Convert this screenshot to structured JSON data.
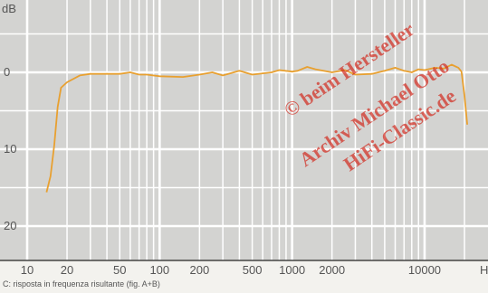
{
  "chart_data": {
    "type": "line",
    "x_scale": "log",
    "y_reversed": true,
    "yunit": "dB",
    "xunit": "Hz",
    "xlim": [
      8,
      28000
    ],
    "ylim": [
      -9,
      24
    ],
    "yticks": [
      {
        "value": 0,
        "label": "0"
      },
      {
        "value": 10,
        "label": "10"
      },
      {
        "value": 20,
        "label": "20"
      }
    ],
    "xticks": [
      {
        "value": 10,
        "label": "10"
      },
      {
        "value": 20,
        "label": "20"
      },
      {
        "value": 50,
        "label": "50"
      },
      {
        "value": 100,
        "label": "100"
      },
      {
        "value": 200,
        "label": "200"
      },
      {
        "value": 500,
        "label": "500"
      },
      {
        "value": 1000,
        "label": "1000"
      },
      {
        "value": 2000,
        "label": "2000"
      },
      {
        "value": 10000,
        "label": "10000"
      }
    ],
    "grid": true,
    "series": [
      {
        "color": "#e8a030",
        "x": [
          14,
          15,
          16,
          17,
          18,
          20,
          25,
          30,
          40,
          50,
          60,
          70,
          80,
          100,
          150,
          200,
          250,
          300,
          400,
          500,
          700,
          800,
          1000,
          1100,
          1300,
          1500,
          2000,
          2500,
          3000,
          4000,
          5000,
          6000,
          7000,
          8000,
          9000,
          10000,
          12000,
          14000,
          16000,
          18000,
          19000,
          20000,
          21000
        ],
        "y": [
          15.6,
          13.5,
          9.5,
          4.5,
          2.0,
          1.3,
          0.4,
          0.2,
          0.2,
          0.2,
          0.0,
          0.3,
          0.3,
          0.5,
          0.6,
          0.3,
          0.0,
          0.4,
          -0.2,
          0.3,
          0.0,
          -0.3,
          -0.1,
          -0.2,
          -0.7,
          -0.4,
          0.0,
          -0.3,
          0.3,
          0.2,
          -0.2,
          -0.6,
          -0.2,
          0.0,
          -0.4,
          -0.3,
          -0.6,
          -0.5,
          -1.0,
          -0.6,
          -0.1,
          3.0,
          6.8
        ]
      }
    ]
  },
  "watermark": [
    "© beim Hersteller",
    "Archiv Michael Otto",
    "HiFi-Classic.de"
  ],
  "caption": "C:  risposta in frequenza risultante (fig. A+B)",
  "colors": {
    "plot_bg": "#d3d3d1",
    "grid": "#ffffff",
    "curve": "#e8a030",
    "watermark": "#d22a1e",
    "page_bg": "#f3f2ee"
  }
}
